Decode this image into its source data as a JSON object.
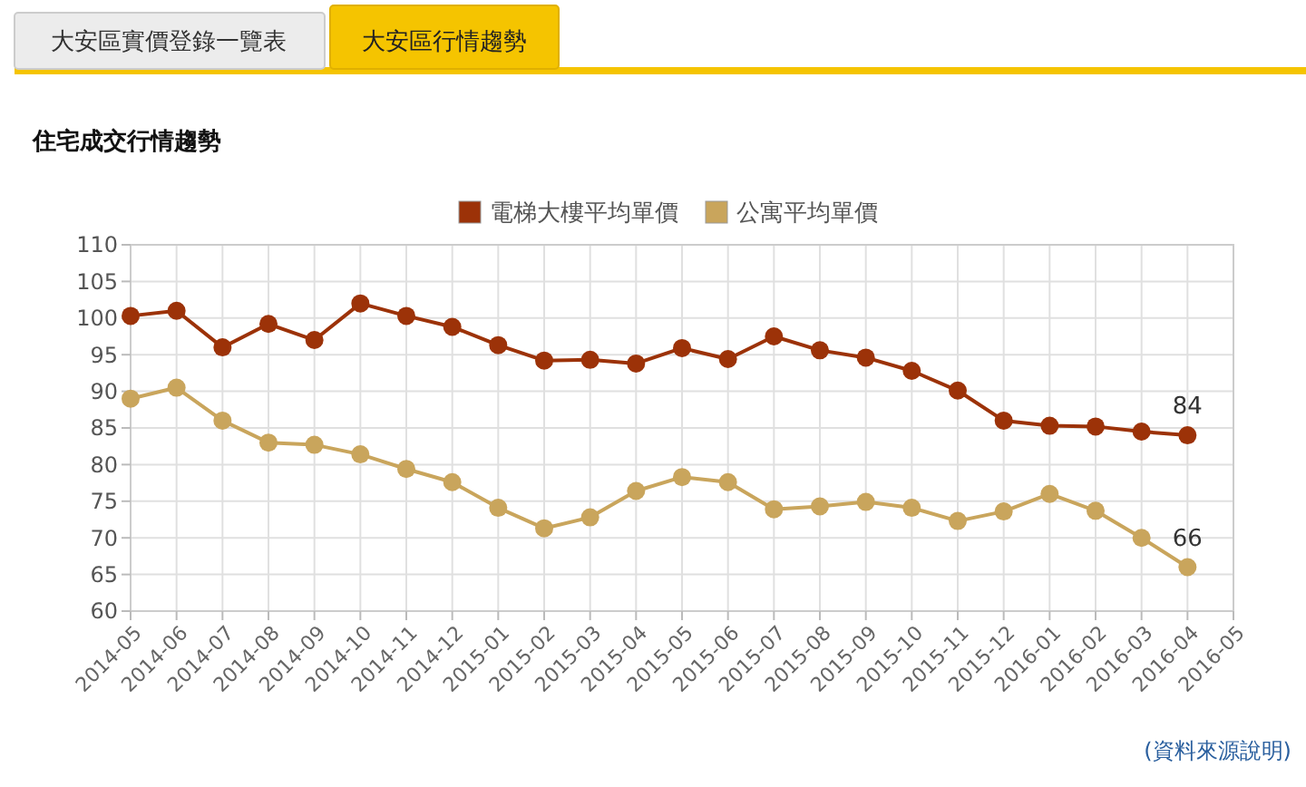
{
  "chart_data": {
    "type": "line",
    "title": "住宅成交行情趨勢",
    "annotations": [
      "大安區實價登錄一覽表",
      "大安區行情趨勢",
      "(資料來源說明)"
    ],
    "categories": [
      "2014-05",
      "2014-06",
      "2014-07",
      "2014-08",
      "2014-09",
      "2014-10",
      "2014-11",
      "2014-12",
      "2015-01",
      "2015-02",
      "2015-03",
      "2015-04",
      "2015-05",
      "2015-06",
      "2015-07",
      "2015-08",
      "2015-09",
      "2015-10",
      "2015-11",
      "2015-12",
      "2016-01",
      "2016-02",
      "2016-03",
      "2016-04",
      "2016-05"
    ],
    "series": [
      {
        "name": "電梯大樓平均單價",
        "color": "#9c3208",
        "values": [
          100.3,
          101,
          96,
          99.2,
          97,
          102,
          100.3,
          98.8,
          96.3,
          94.2,
          94.3,
          93.8,
          95.9,
          94.4,
          97.5,
          95.6,
          94.6,
          92.8,
          90.1,
          86,
          85.3,
          85.2,
          84.5,
          84,
          null
        ],
        "value_labels": [
          null,
          null,
          null,
          null,
          null,
          null,
          null,
          null,
          null,
          null,
          null,
          null,
          null,
          null,
          null,
          null,
          null,
          null,
          null,
          null,
          null,
          null,
          null,
          "84",
          null
        ]
      },
      {
        "name": "公寓平均單價",
        "color": "#c9a55c",
        "values": [
          89,
          90.5,
          86,
          83,
          82.7,
          81.4,
          79.4,
          77.6,
          74.1,
          71.3,
          72.8,
          76.4,
          78.3,
          77.6,
          73.9,
          74.3,
          74.9,
          74.1,
          72.3,
          73.6,
          76,
          73.7,
          70,
          66,
          null
        ],
        "value_labels": [
          null,
          null,
          null,
          null,
          null,
          null,
          null,
          null,
          null,
          null,
          null,
          null,
          null,
          null,
          null,
          null,
          null,
          null,
          null,
          null,
          null,
          null,
          null,
          "66",
          null
        ]
      }
    ],
    "ylim": [
      60,
      110
    ],
    "yticks": [
      60,
      65,
      70,
      75,
      80,
      85,
      90,
      95,
      100,
      105,
      110
    ],
    "grid": true,
    "legend": "top",
    "marker": "circle",
    "line_style": "solid"
  }
}
